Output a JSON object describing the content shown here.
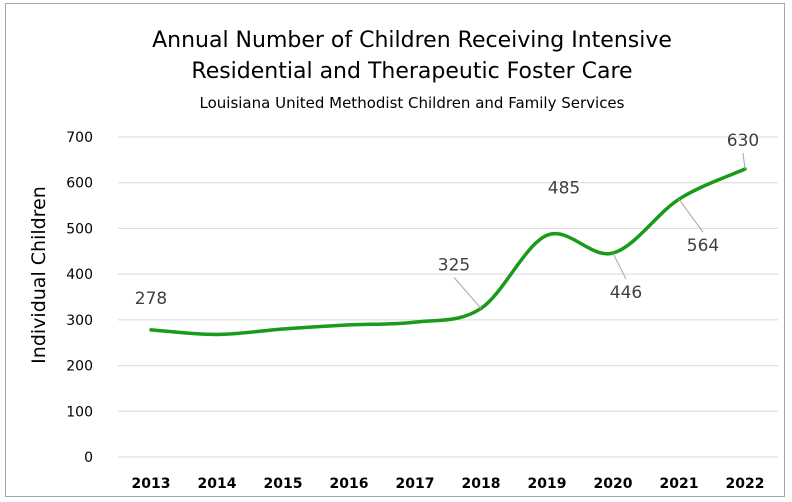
{
  "chart_data": {
    "type": "line",
    "title_line1": "Annual Number of Children Receiving Intensive",
    "title_line2": "Residential and Therapeutic Foster Care",
    "subtitle": "Louisiana United Methodist Children and Family Services",
    "xlabel": "",
    "ylabel": "Individual Children",
    "ylim": [
      0,
      700
    ],
    "yticks": [
      "0",
      "100",
      "200",
      "300",
      "400",
      "500",
      "600",
      "700"
    ],
    "categories": [
      "2013",
      "2014",
      "2015",
      "2016",
      "2017",
      "2018",
      "2019",
      "2020",
      "2021",
      "2022"
    ],
    "series": [
      {
        "name": "",
        "color": "#1a9a1a",
        "values": [
          278,
          268,
          280,
          289,
          295,
          325,
          485,
          446,
          564,
          630
        ]
      }
    ],
    "data_labels": [
      {
        "index": 0,
        "text": "278"
      },
      {
        "index": 5,
        "text": "325"
      },
      {
        "index": 6,
        "text": "485"
      },
      {
        "index": 7,
        "text": "446"
      },
      {
        "index": 8,
        "text": "564"
      },
      {
        "index": 9,
        "text": "630"
      }
    ],
    "grid": true,
    "legend": "none"
  }
}
